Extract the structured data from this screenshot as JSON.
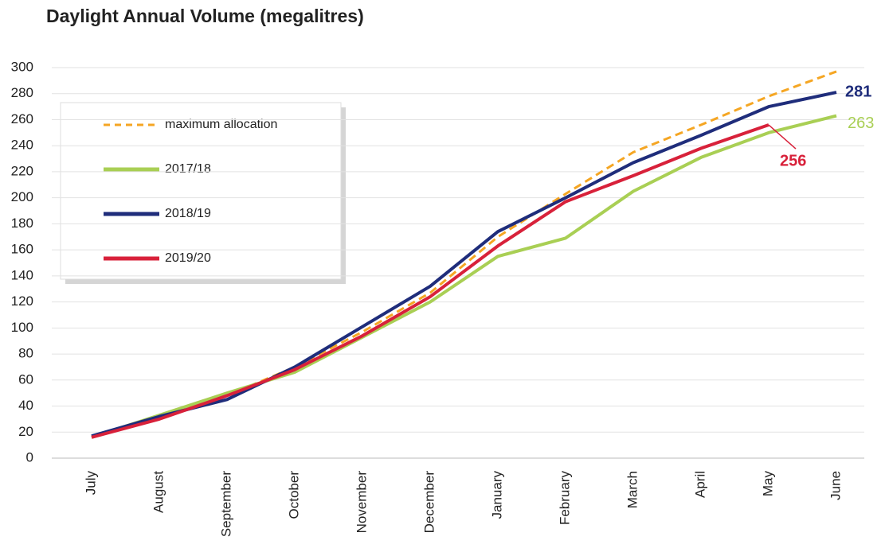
{
  "chart_data": {
    "type": "line",
    "title": "Daylight Annual Volume (megalitres)",
    "categories": [
      "July",
      "August",
      "September",
      "October",
      "November",
      "December",
      "January",
      "February",
      "March",
      "April",
      "May",
      "June"
    ],
    "series": [
      {
        "name": "maximum allocation",
        "color": "#f5a623",
        "dashed": true,
        "values": [
          16,
          32,
          48,
          70,
          97,
          127,
          170,
          203,
          235,
          256,
          278,
          297
        ]
      },
      {
        "name": "2017/18",
        "color": "#a9cf54",
        "values": [
          16,
          33,
          50,
          66,
          93,
          120,
          155,
          169,
          205,
          231,
          250,
          263
        ]
      },
      {
        "name": "2018/19",
        "color": "#1f2d7b",
        "values": [
          17,
          32,
          45,
          70,
          101,
          132,
          174,
          200,
          227,
          248,
          270,
          281
        ]
      },
      {
        "name": "2019/20",
        "color": "#d8213a",
        "values": [
          16,
          30,
          48,
          68,
          94,
          124,
          163,
          197,
          217,
          238,
          256,
          null
        ]
      }
    ],
    "ylim": [
      0,
      300
    ],
    "yticks": [
      0,
      20,
      40,
      60,
      80,
      100,
      120,
      140,
      160,
      180,
      200,
      220,
      240,
      260,
      280,
      300
    ],
    "grid": true
  }
}
